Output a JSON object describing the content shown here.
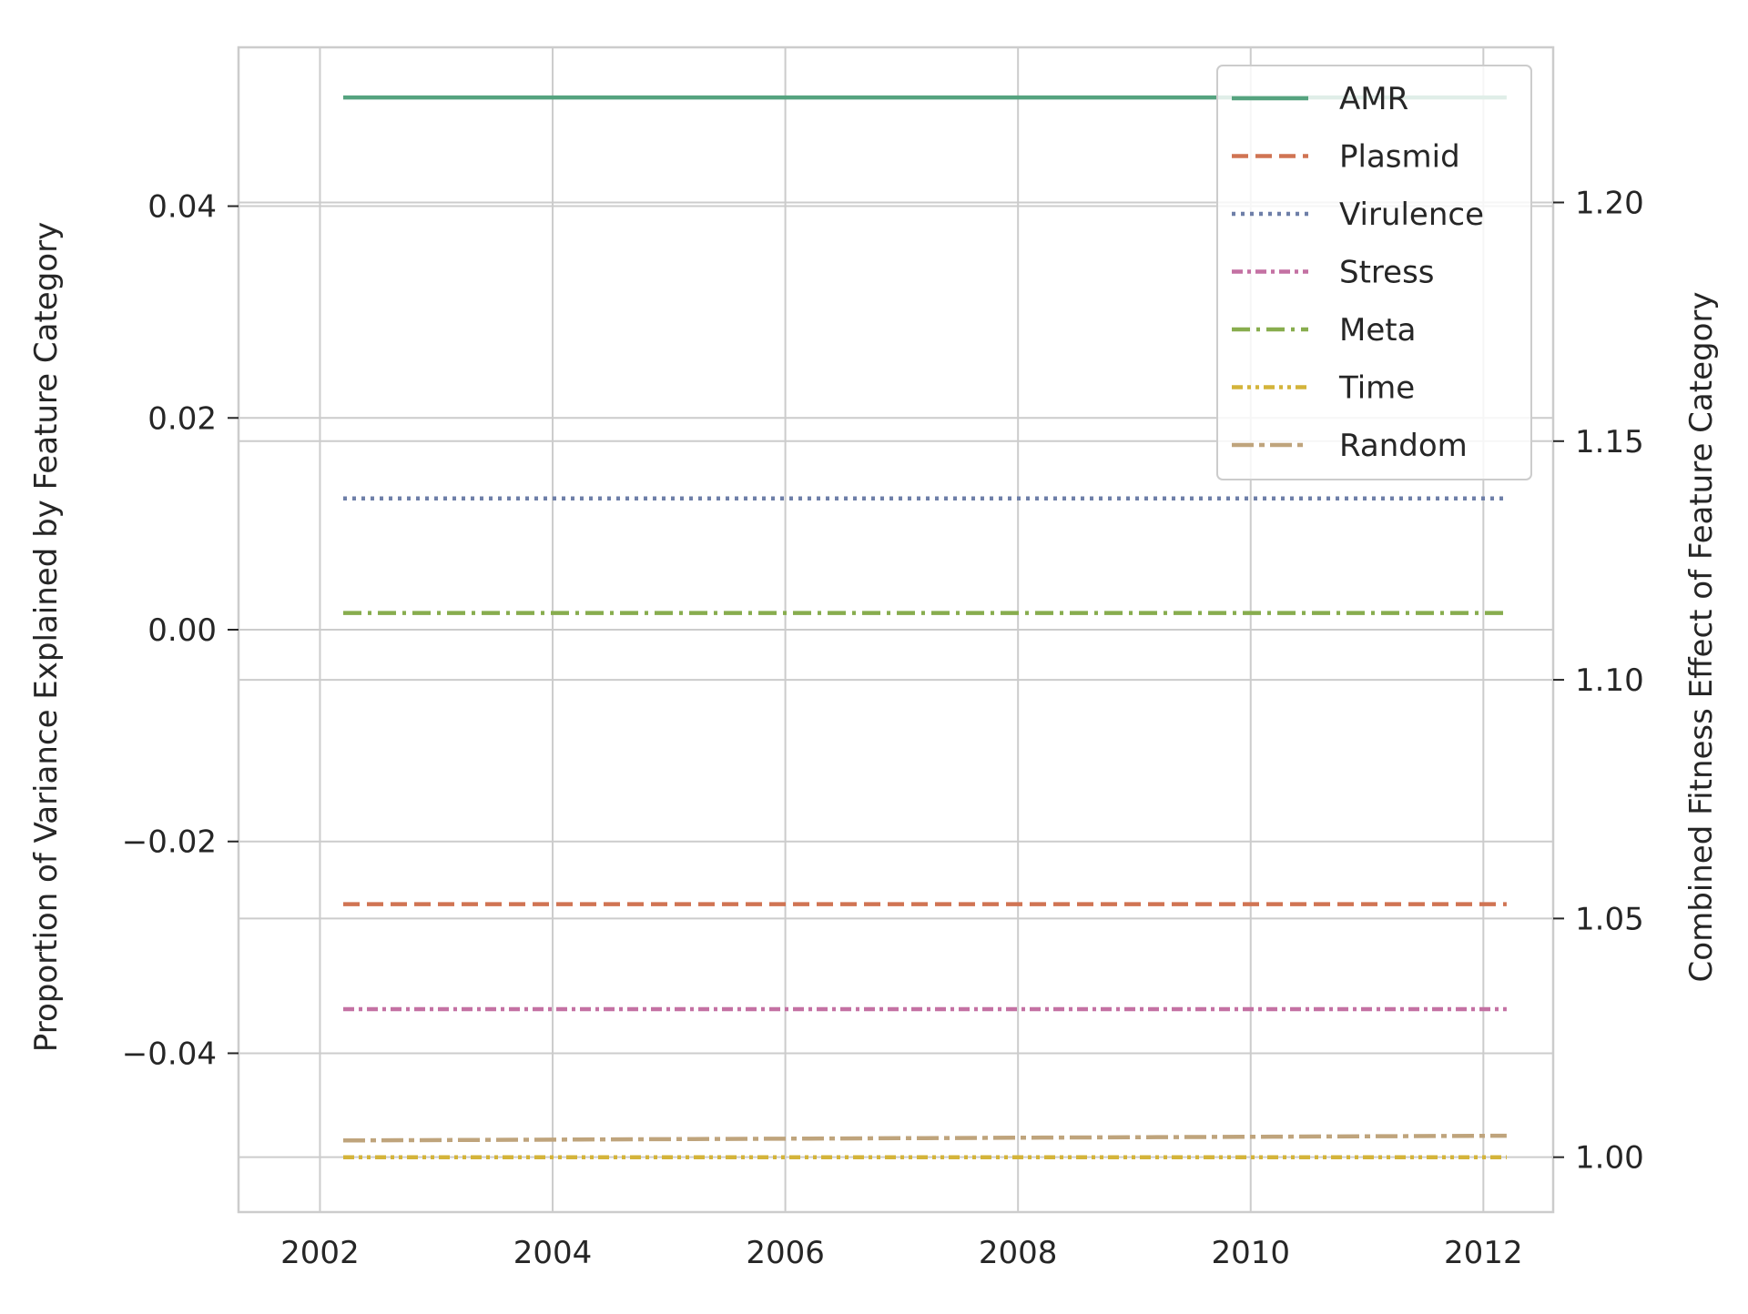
{
  "chart_data": {
    "type": "line",
    "title": "",
    "xlabel": "",
    "ylabel_left": "Proportion of Variance Explained by Feature Category",
    "ylabel_right": "Combined Fitness Effect of Feature Category",
    "x": [
      2002.2,
      2012.2
    ],
    "xlim": [
      2001.3,
      2012.6
    ],
    "xticks": [
      2002,
      2004,
      2006,
      2008,
      2010,
      2012
    ],
    "xtick_labels": [
      "2002",
      "2004",
      "2006",
      "2008",
      "2010",
      "2012"
    ],
    "ylim_left": [
      -0.055,
      0.055
    ],
    "yticks_left": [
      0.04,
      0.02,
      0.0,
      -0.02,
      -0.04
    ],
    "ytick_labels_left": [
      "0.04",
      "0.02",
      "0.00",
      "−0.02",
      "−0.04"
    ],
    "ylim_right": [
      0.9885,
      1.2325
    ],
    "yticks_right": [
      1.2,
      1.15,
      1.1,
      1.05,
      1.0
    ],
    "ytick_labels_right": [
      "1.20",
      "1.15",
      "1.10",
      "1.05",
      "1.00"
    ],
    "grid": true,
    "legend_position": "top-right",
    "series": [
      {
        "name": "AMR",
        "axis": "right",
        "color": "#55a37f",
        "dash": "solid",
        "values": [
          1.222,
          1.222
        ]
      },
      {
        "name": "Plasmid",
        "axis": "right",
        "color": "#d07453",
        "dash": "dashed",
        "values": [
          1.053,
          1.053
        ]
      },
      {
        "name": "Virulence",
        "axis": "right",
        "color": "#6e7fa8",
        "dash": "dotted",
        "values": [
          1.138,
          1.138
        ]
      },
      {
        "name": "Stress",
        "axis": "right",
        "color": "#c471a3",
        "dash": "dashdot-fine",
        "values": [
          1.031,
          1.031
        ]
      },
      {
        "name": "Meta",
        "axis": "right",
        "color": "#88ad4e",
        "dash": "dashdot",
        "values": [
          1.114,
          1.114
        ]
      },
      {
        "name": "Time",
        "axis": "right",
        "color": "#d4b43a",
        "dash": "dashdotdot",
        "values": [
          1.0,
          1.0
        ]
      },
      {
        "name": "Random",
        "axis": "right",
        "color": "#bfa47c",
        "dash": "longdashdot",
        "values": [
          1.0035,
          1.0045
        ]
      }
    ]
  }
}
